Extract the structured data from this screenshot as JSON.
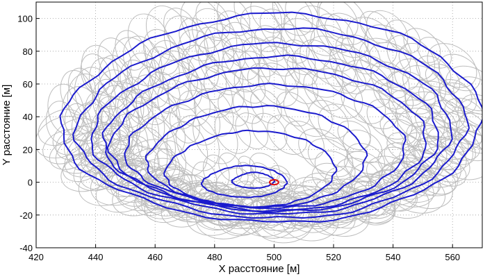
{
  "chart_data": {
    "type": "line",
    "title": "",
    "xlabel": "X расстояние [м]",
    "ylabel": "Y расстояние [м]",
    "xlim": [
      420,
      570
    ],
    "ylim": [
      -40,
      110
    ],
    "xticks": [
      420,
      440,
      460,
      480,
      500,
      520,
      540,
      560
    ],
    "yticks": [
      -40,
      -20,
      0,
      20,
      40,
      60,
      80,
      100
    ],
    "grid": true,
    "grid_style": "dotted",
    "colors": {
      "contour": "#1a1acd",
      "circles": "#bdbdbd",
      "center": "#e01010"
    },
    "center_point": {
      "x": 500,
      "y": 0
    },
    "contours": [
      {
        "cx": 499,
        "cy": 36,
        "rx": 69,
        "ry": 66,
        "n": 1
      },
      {
        "cx": 499,
        "cy": 33,
        "rx": 64,
        "ry": 60,
        "n": 2
      },
      {
        "cx": 499,
        "cy": 30,
        "rx": 59,
        "ry": 54,
        "n": 3
      },
      {
        "cx": 499,
        "cy": 27,
        "rx": 55,
        "ry": 49,
        "n": 4
      },
      {
        "cx": 498,
        "cy": 24,
        "rx": 52,
        "ry": 45,
        "n": 5
      },
      {
        "cx": 497,
        "cy": 20,
        "rx": 46,
        "ry": 39,
        "n": 6
      },
      {
        "cx": 494,
        "cy": 14,
        "rx": 36,
        "ry": 32,
        "n": 7
      },
      {
        "cx": 492,
        "cy": 7,
        "rx": 28,
        "ry": 24,
        "n": 8
      },
      {
        "cx": 490,
        "cy": 0,
        "rx": 14,
        "ry": 10,
        "n": 9
      },
      {
        "cx": 493,
        "cy": 1,
        "rx": 7,
        "ry": 5,
        "n": 10
      }
    ]
  }
}
